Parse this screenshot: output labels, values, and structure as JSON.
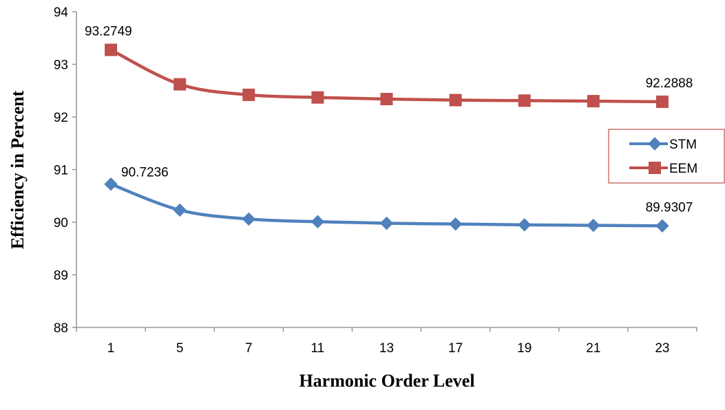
{
  "chart_data": {
    "type": "line",
    "categories": [
      "1",
      "5",
      "7",
      "11",
      "13",
      "17",
      "19",
      "21",
      "23"
    ],
    "series": [
      {
        "name": "STM",
        "color": "#4F81BD",
        "marker": "diamond",
        "values": [
          90.7236,
          90.23,
          90.06,
          90.01,
          89.98,
          89.965,
          89.95,
          89.94,
          89.9307
        ]
      },
      {
        "name": "EEM",
        "color": "#C0504D",
        "marker": "square",
        "values": [
          93.2749,
          92.62,
          92.42,
          92.37,
          92.34,
          92.32,
          92.31,
          92.3,
          92.2888
        ]
      }
    ],
    "data_labels": [
      {
        "series": 1,
        "index": 0,
        "text": "93.2749"
      },
      {
        "series": 1,
        "index": 8,
        "text": "92.2888"
      },
      {
        "series": 0,
        "index": 0,
        "text": "90.7236"
      },
      {
        "series": 0,
        "index": 8,
        "text": "89.9307"
      }
    ],
    "ylim": [
      88,
      94
    ],
    "yticks": [
      "88",
      "89",
      "90",
      "91",
      "92",
      "93",
      "94"
    ],
    "xlabel": "Harmonic Order Level",
    "ylabel": "Efficiency in Percent",
    "grid": false,
    "legend": "right",
    "smooth": true
  }
}
